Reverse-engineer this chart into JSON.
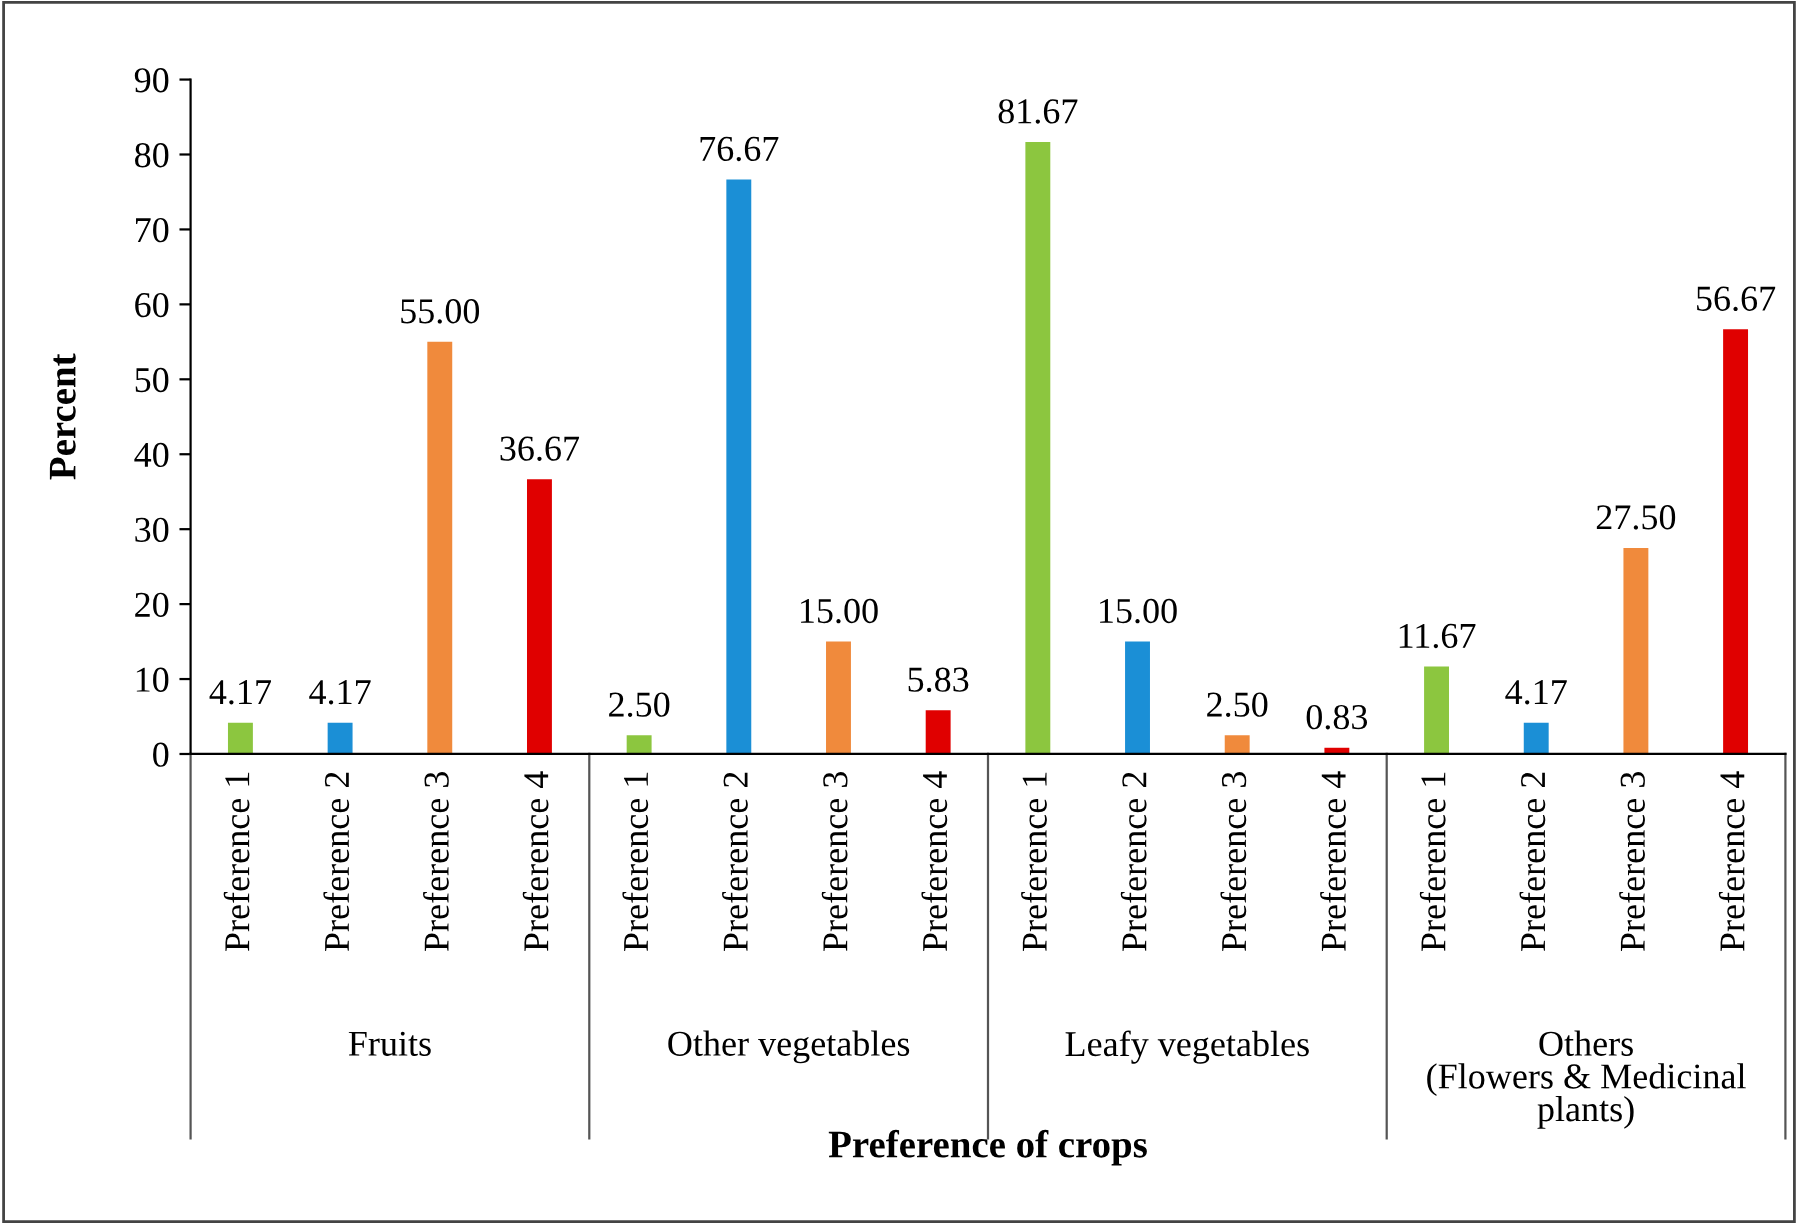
{
  "chart_data": {
    "type": "bar",
    "categories": [
      "Preference 1",
      "Preference 2",
      "Preference 3",
      "Preference 4",
      "Preference 1",
      "Preference 2",
      "Preference 3",
      "Preference 4",
      "Preference 1",
      "Preference 2",
      "Preference 3",
      "Preference 4",
      "Preference 1",
      "Preference 2",
      "Preference 3",
      "Preference 4"
    ],
    "values": [
      4.17,
      4.17,
      55.0,
      36.67,
      2.5,
      76.67,
      15.0,
      5.83,
      81.67,
      15.0,
      2.5,
      0.83,
      11.67,
      4.17,
      27.5,
      56.67
    ],
    "colors": [
      "#8cc63f",
      "#1b8fd6",
      "#f08a3c",
      "#e00000",
      "#8cc63f",
      "#1b8fd6",
      "#f08a3c",
      "#e00000",
      "#8cc63f",
      "#1b8fd6",
      "#f08a3c",
      "#e00000",
      "#8cc63f",
      "#1b8fd6",
      "#f08a3c",
      "#e00000"
    ],
    "value_labels": [
      "4.17",
      "4.17",
      "55.00",
      "36.67",
      "2.50",
      "76.67",
      "15.00",
      "5.83",
      "81.67",
      "15.00",
      "2.50",
      "0.83",
      "11.67",
      "4.17",
      "27.50",
      "56.67"
    ],
    "annotations": [
      "Fruits",
      "Other vegetables",
      "Leafy vegetables",
      "Others\n(Flowers & Medicinal\nplants)"
    ],
    "xlabel": "Preference of crops",
    "ylabel": "Percent",
    "ylim": [
      0,
      90
    ],
    "yticks": [
      0,
      10,
      20,
      30,
      40,
      50,
      60,
      70,
      80,
      90
    ],
    "grid": false,
    "legend": false
  }
}
